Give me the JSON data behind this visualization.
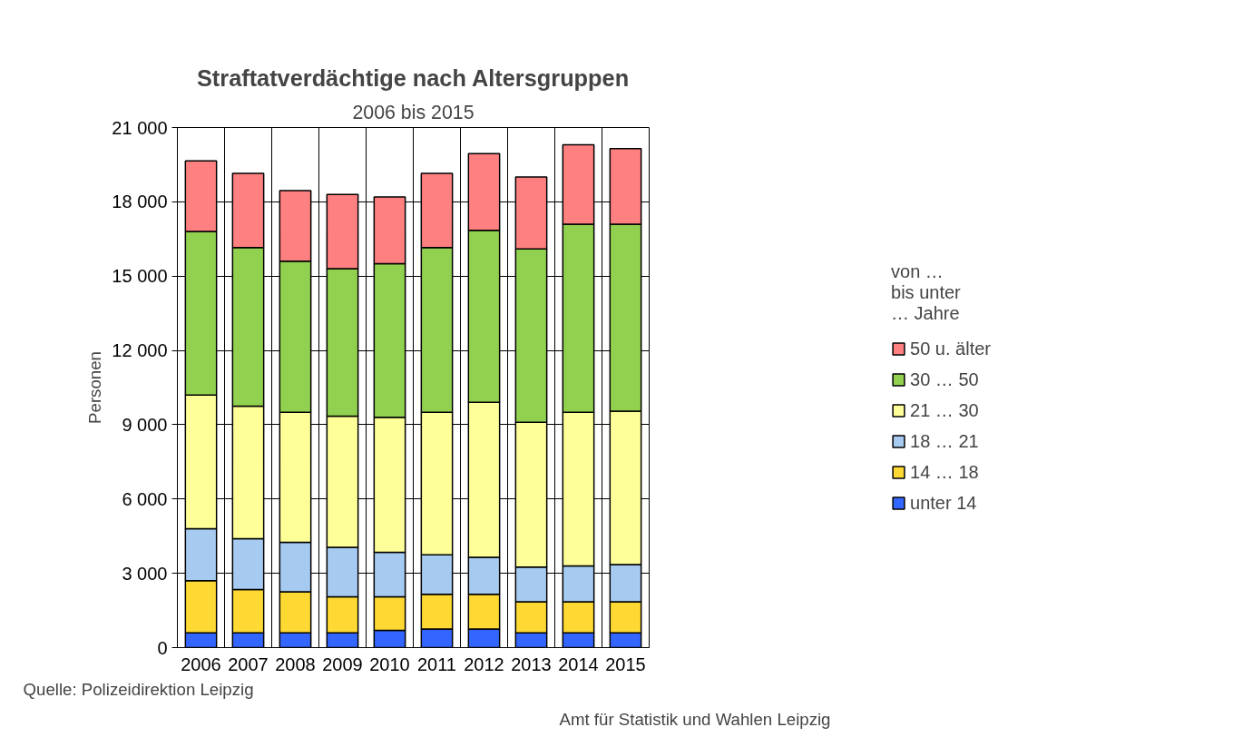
{
  "chart_data": {
    "type": "bar",
    "stacked": true,
    "title": "Straftatverdächtige nach Altersgruppen",
    "subtitle": "2006 bis 2015",
    "ylabel": "Personen",
    "legend_title": "von …\nbis unter\n… Jahre",
    "legend": "right",
    "categories": [
      "2006",
      "2007",
      "2008",
      "2009",
      "2010",
      "2011",
      "2012",
      "2013",
      "2014",
      "2015"
    ],
    "series": [
      {
        "name": "unter 14",
        "color": "#3366ff",
        "values": [
          600,
          600,
          600,
          600,
          700,
          750,
          750,
          600,
          600,
          600
        ]
      },
      {
        "name": "14 … 18",
        "color": "#ffd933",
        "values": [
          2100,
          1750,
          1650,
          1450,
          1350,
          1400,
          1400,
          1250,
          1250,
          1250
        ]
      },
      {
        "name": "18 … 21",
        "color": "#a6caf0",
        "values": [
          2100,
          2050,
          2000,
          2000,
          1800,
          1600,
          1500,
          1400,
          1450,
          1500
        ]
      },
      {
        "name": "21 … 30",
        "color": "#ffff99",
        "values": [
          5400,
          5350,
          5250,
          5300,
          5450,
          5750,
          6250,
          5850,
          6200,
          6200
        ]
      },
      {
        "name": "30 … 50",
        "color": "#92d050",
        "values": [
          6600,
          6400,
          6100,
          5950,
          6200,
          6650,
          6950,
          7000,
          7600,
          7550
        ]
      },
      {
        "name": "50 u. älter",
        "color": "#ff8080",
        "values": [
          2850,
          3000,
          2850,
          3000,
          2700,
          3000,
          3100,
          2900,
          3200,
          3050
        ]
      }
    ],
    "ylim": [
      0,
      21000
    ],
    "yticks": [
      0,
      {
        "value": 3000,
        "label": "3 000"
      },
      {
        "value": 6000,
        "label": "6 000"
      },
      {
        "value": 9000,
        "label": "9 000"
      },
      {
        "value": 12000,
        "label": "12 000"
      },
      {
        "value": 15000,
        "label": "15 000"
      },
      {
        "value": 18000,
        "label": "18 000"
      },
      {
        "value": 21000,
        "label": "21 000"
      }
    ],
    "grid": true,
    "annotations": [
      "Quelle: Polizeidirektion Leipzig",
      "Amt für Statistik und Wahlen Leipzig"
    ]
  }
}
